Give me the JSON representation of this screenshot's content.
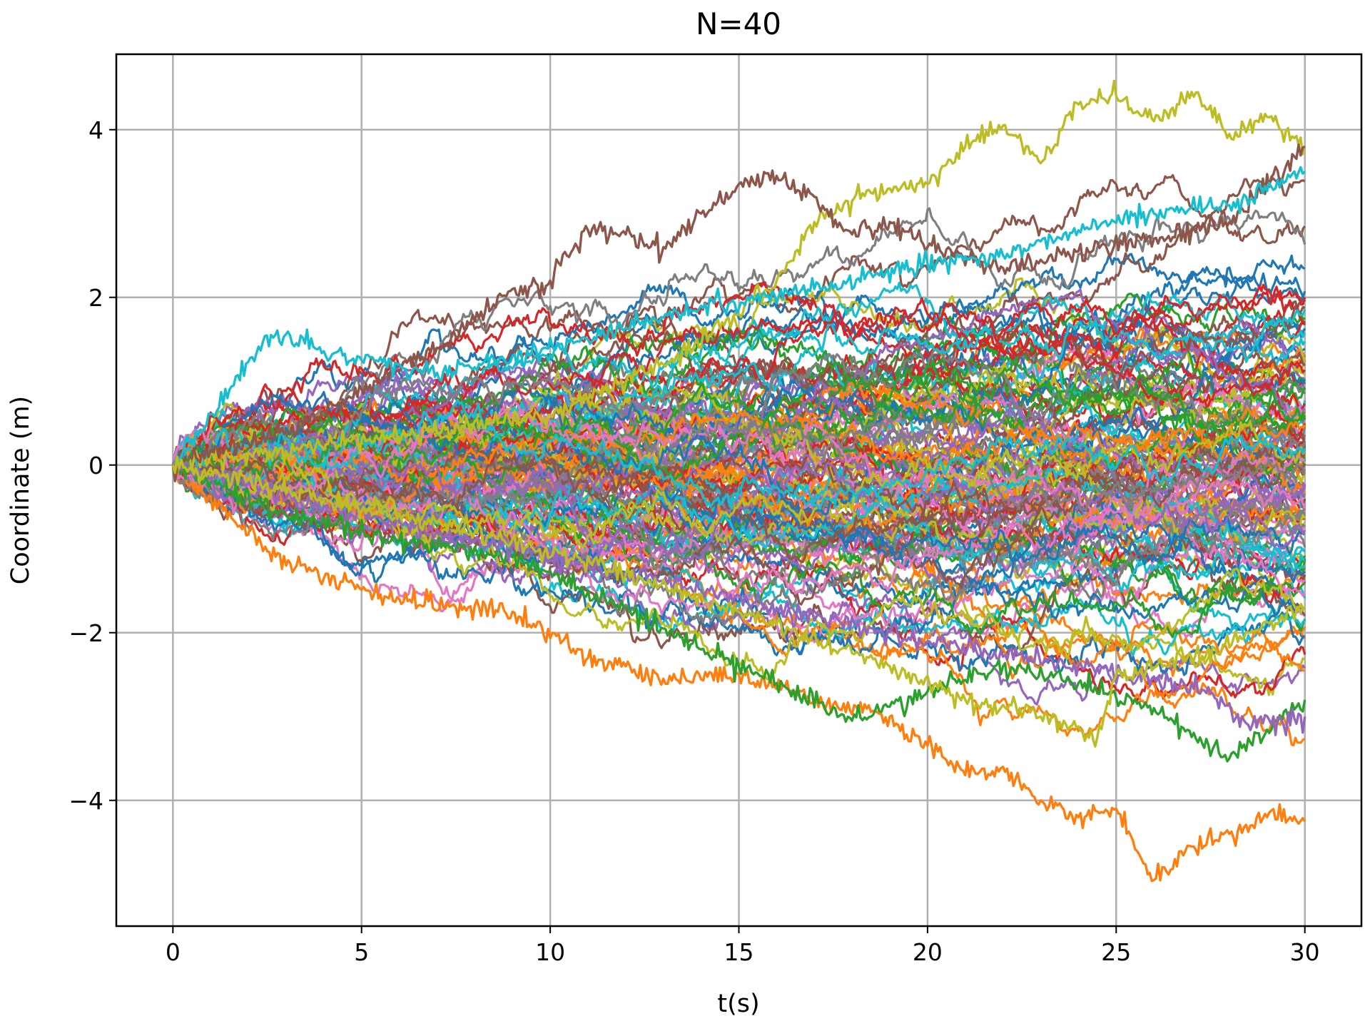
{
  "chart_data": {
    "type": "line",
    "title": "N=40",
    "xlabel": "t(s)",
    "ylabel": "Coordinate (m)",
    "xlim": [
      -1.5,
      31.5
    ],
    "ylim": [
      -5.5,
      4.9
    ],
    "x_ticks": [
      0,
      5,
      10,
      15,
      20,
      25,
      30
    ],
    "y_ticks": [
      -4,
      -2,
      0,
      2,
      4
    ],
    "x_tick_labels": [
      "0",
      "5",
      "10",
      "15",
      "20",
      "25",
      "30"
    ],
    "y_tick_labels": [
      "−4",
      "−2",
      "0",
      "2",
      "4"
    ],
    "grid": true,
    "legend": "none",
    "series_count": 150,
    "t_start": 0,
    "t_end": 30,
    "x0": 0,
    "palette": [
      "#1f77b4",
      "#ff7f0e",
      "#2ca02c",
      "#d62728",
      "#9467bd",
      "#8c564b",
      "#e377c2",
      "#7f7f7f",
      "#bcbd22",
      "#17becf"
    ],
    "highlighted_paths": [
      {
        "color": "#ff7f0e",
        "points": [
          [
            0,
            0
          ],
          [
            3,
            -1.2
          ],
          [
            6,
            -1.6
          ],
          [
            9,
            -1.75
          ],
          [
            11,
            -2.3
          ],
          [
            13,
            -2.55
          ],
          [
            15,
            -2.5
          ],
          [
            17,
            -2.8
          ],
          [
            19,
            -3.0
          ],
          [
            20,
            -3.35
          ],
          [
            21,
            -3.7
          ],
          [
            22,
            -3.6
          ],
          [
            23,
            -4.0
          ],
          [
            24,
            -4.2
          ],
          [
            25,
            -4.1
          ],
          [
            26,
            -4.95
          ],
          [
            27,
            -4.55
          ],
          [
            28,
            -4.4
          ],
          [
            29,
            -4.2
          ],
          [
            30,
            -4.25
          ]
        ]
      },
      {
        "color": "#bcbd22",
        "points": [
          [
            0,
            0
          ],
          [
            5,
            0.3
          ],
          [
            10,
            0.6
          ],
          [
            13,
            1.2
          ],
          [
            15,
            1.8
          ],
          [
            16,
            2.2
          ],
          [
            17,
            2.9
          ],
          [
            18,
            3.15
          ],
          [
            19,
            3.3
          ],
          [
            20,
            3.35
          ],
          [
            21,
            3.8
          ],
          [
            22,
            4.05
          ],
          [
            23,
            3.6
          ],
          [
            24,
            4.3
          ],
          [
            25,
            4.4
          ],
          [
            26,
            4.1
          ],
          [
            27,
            4.45
          ],
          [
            28,
            3.95
          ],
          [
            29,
            4.15
          ],
          [
            30,
            3.8
          ]
        ]
      },
      {
        "color": "#8c564b",
        "points": [
          [
            0,
            0
          ],
          [
            3,
            0.4
          ],
          [
            5,
            0.9
          ],
          [
            7,
            1.4
          ],
          [
            9,
            2.1
          ],
          [
            10,
            2.2
          ],
          [
            11,
            2.8
          ],
          [
            12,
            2.75
          ],
          [
            13,
            2.6
          ],
          [
            14,
            3.0
          ],
          [
            15,
            3.35
          ],
          [
            16,
            3.45
          ],
          [
            17,
            3.2
          ],
          [
            18,
            2.75
          ],
          [
            19,
            2.9
          ],
          [
            20,
            2.6
          ],
          [
            22,
            2.35
          ],
          [
            24,
            2.55
          ],
          [
            26,
            2.7
          ],
          [
            28,
            2.9
          ],
          [
            30,
            3.8
          ]
        ]
      },
      {
        "color": "#17becf",
        "points": [
          [
            0,
            0
          ],
          [
            1.5,
            0.9
          ],
          [
            2.6,
            1.55
          ],
          [
            3.5,
            1.45
          ],
          [
            5,
            1.25
          ],
          [
            7,
            1.1
          ],
          [
            9,
            1.3
          ],
          [
            11,
            1.5
          ],
          [
            14,
            1.9
          ],
          [
            17,
            2.1
          ],
          [
            20,
            2.4
          ],
          [
            22,
            2.5
          ],
          [
            24,
            2.8
          ],
          [
            26,
            3.0
          ],
          [
            28,
            3.1
          ],
          [
            30,
            3.5
          ]
        ]
      },
      {
        "color": "#2ca02c",
        "points": [
          [
            0,
            0
          ],
          [
            3,
            -0.6
          ],
          [
            6,
            -0.9
          ],
          [
            9,
            -1.1
          ],
          [
            12,
            -1.7
          ],
          [
            14,
            -2.2
          ],
          [
            16,
            -2.6
          ],
          [
            18,
            -3.05
          ],
          [
            20,
            -2.7
          ],
          [
            22,
            -2.4
          ],
          [
            24,
            -2.6
          ],
          [
            26,
            -2.9
          ],
          [
            28,
            -3.5
          ],
          [
            30,
            -2.8
          ]
        ]
      },
      {
        "color": "#9467bd",
        "points": [
          [
            0,
            0
          ],
          [
            4,
            -0.5
          ],
          [
            8,
            -0.9
          ],
          [
            12,
            -1.3
          ],
          [
            16,
            -1.7
          ],
          [
            20,
            -2.1
          ],
          [
            24,
            -2.4
          ],
          [
            27,
            -2.6
          ],
          [
            28.5,
            -3.1
          ],
          [
            30,
            -3.0
          ]
        ]
      },
      {
        "color": "#bcbd22",
        "points": [
          [
            0,
            0
          ],
          [
            4,
            -0.4
          ],
          [
            8,
            -0.8
          ],
          [
            12,
            -1.3
          ],
          [
            16,
            -1.9
          ],
          [
            19,
            -2.4
          ],
          [
            21,
            -2.8
          ],
          [
            23,
            -3.0
          ],
          [
            24.5,
            -3.25
          ],
          [
            25,
            -2.5
          ],
          [
            27,
            -2.3
          ],
          [
            30,
            -1.7
          ]
        ]
      }
    ]
  }
}
